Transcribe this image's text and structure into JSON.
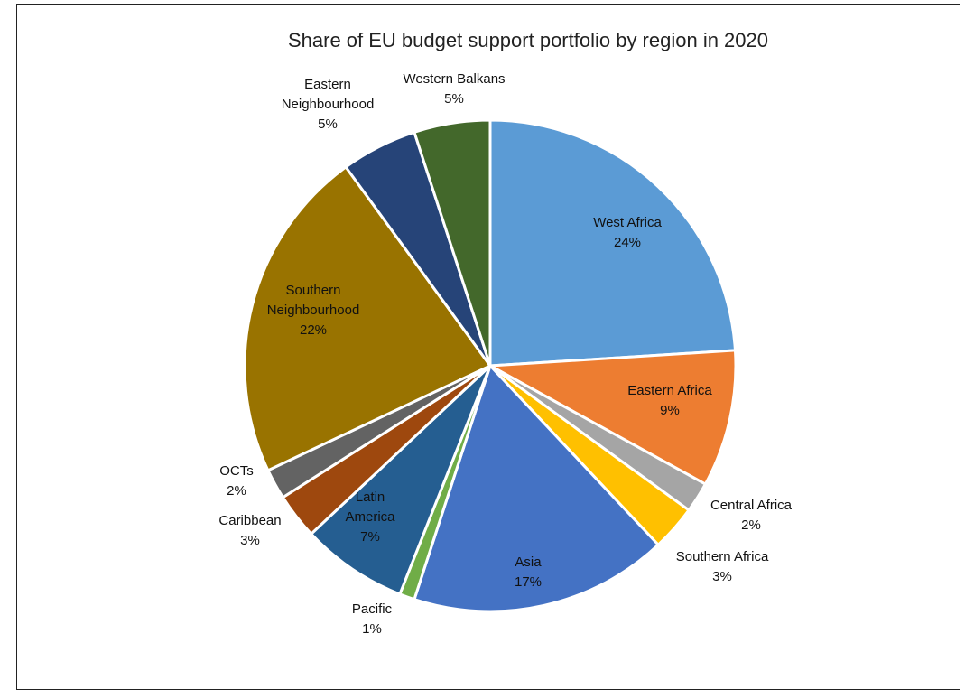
{
  "chart_data": {
    "type": "pie",
    "title": "Share of EU budget support portfolio by region in 2020",
    "slices": [
      {
        "label": [
          "West Africa"
        ],
        "pct_text": "24%",
        "value": 24,
        "color": "#5B9BD5"
      },
      {
        "label": [
          "Eastern Africa"
        ],
        "pct_text": "9%",
        "value": 9,
        "color": "#ED7D31"
      },
      {
        "label": [
          "Central Africa"
        ],
        "pct_text": "2%",
        "value": 2,
        "color": "#A5A5A5"
      },
      {
        "label": [
          "Southern Africa"
        ],
        "pct_text": "3%",
        "value": 3,
        "color": "#FFC000"
      },
      {
        "label": [
          "Asia"
        ],
        "pct_text": "17%",
        "value": 17,
        "color": "#4472C4"
      },
      {
        "label": [
          "Pacific"
        ],
        "pct_text": "1%",
        "value": 1,
        "color": "#70AD47"
      },
      {
        "label": [
          "Latin",
          "America"
        ],
        "pct_text": "7%",
        "value": 7,
        "color": "#255E91"
      },
      {
        "label": [
          "Caribbean"
        ],
        "pct_text": "3%",
        "value": 3,
        "color": "#9E480E"
      },
      {
        "label": [
          "OCTs"
        ],
        "pct_text": "2%",
        "value": 2,
        "color": "#636363"
      },
      {
        "label": [
          "Southern",
          "Neighbourhood"
        ],
        "pct_text": "22%",
        "value": 22,
        "color": "#997300"
      },
      {
        "label": [
          "Eastern",
          "Neighbourhood"
        ],
        "pct_text": "5%",
        "value": 5,
        "color": "#264478"
      },
      {
        "label": [
          "Western Balkans"
        ],
        "pct_text": "5%",
        "value": 5,
        "color": "#43682B"
      }
    ]
  }
}
